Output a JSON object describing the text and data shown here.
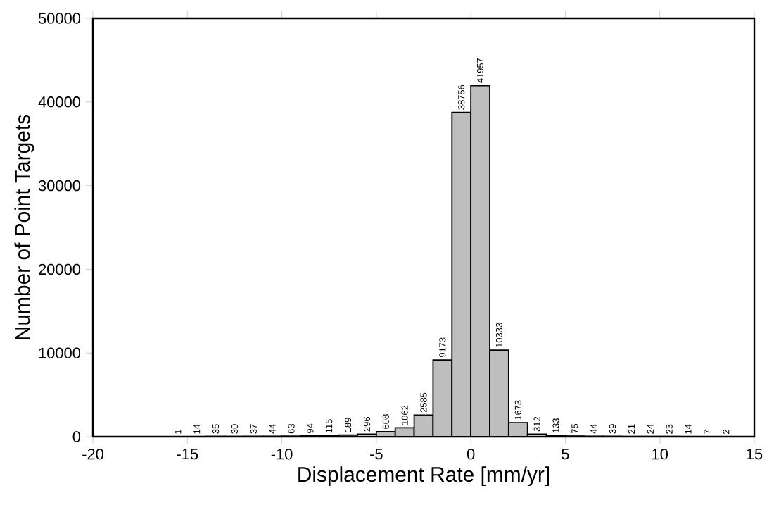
{
  "chart_data": {
    "type": "histogram",
    "xlabel": "Displacement Rate [mm/yr]",
    "ylabel": "Number of Point Targets",
    "bins": [
      -16,
      -15,
      -14,
      -13,
      -12,
      -11,
      -10,
      -9,
      -8,
      -7,
      -6,
      -5,
      -4,
      -3,
      -2,
      -1,
      0,
      1,
      2,
      3,
      4,
      5,
      6,
      7,
      8,
      9,
      10,
      11,
      12,
      13,
      14
    ],
    "values": [
      1,
      14,
      35,
      30,
      37,
      44,
      63,
      94,
      115,
      189,
      296,
      608,
      1062,
      2585,
      9173,
      38756,
      41957,
      10333,
      1673,
      312,
      133,
      75,
      44,
      39,
      21,
      24,
      23,
      14,
      7,
      2
    ],
    "color": "#bebebe",
    "data_labels": true,
    "xlim": [
      -20,
      15
    ],
    "xticks": [
      -20,
      -15,
      -10,
      -5,
      0,
      5,
      10,
      15
    ],
    "ylim": [
      0,
      50000
    ],
    "yticks": [
      0,
      10000,
      20000,
      30000,
      40000,
      50000
    ],
    "grid": false
  }
}
